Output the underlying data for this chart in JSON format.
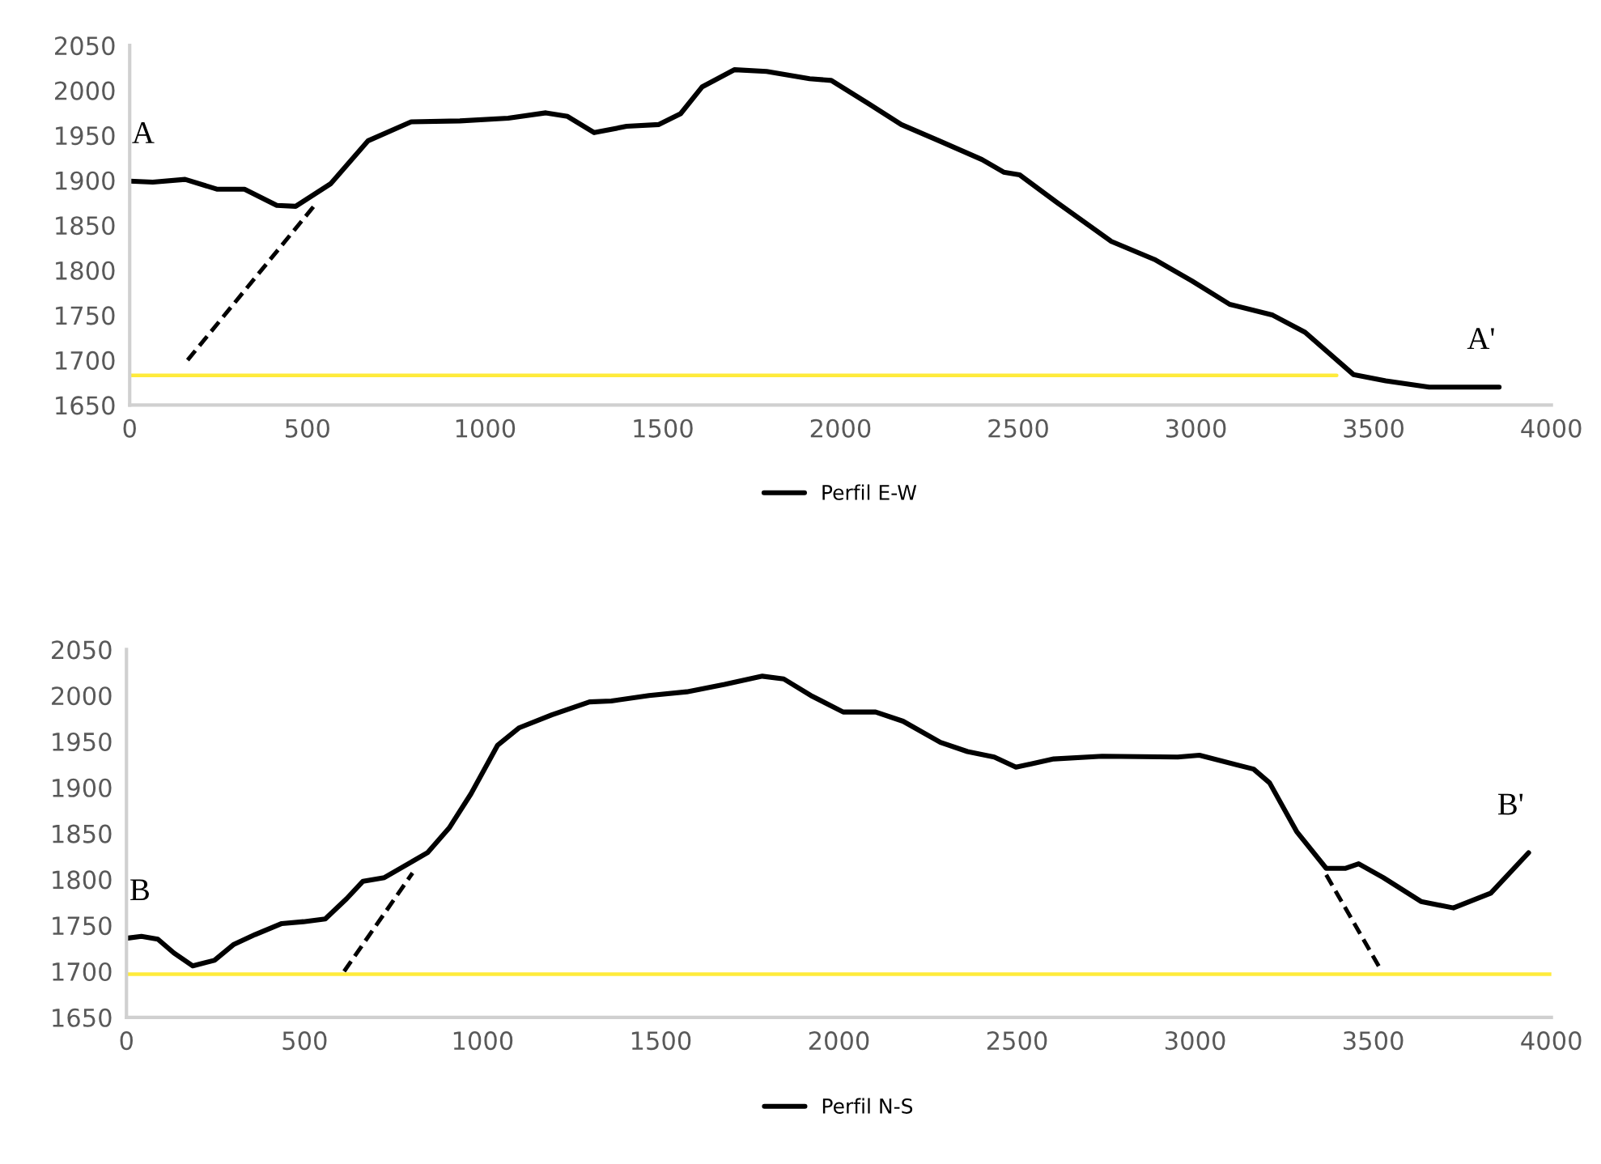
{
  "chart_data": [
    {
      "type": "line",
      "xlim": [
        0,
        4000
      ],
      "ylim": [
        1650,
        2050
      ],
      "xticks": [
        0,
        500,
        1000,
        1500,
        2000,
        2500,
        3000,
        3500,
        4000
      ],
      "yticks": [
        1650,
        1700,
        1750,
        1800,
        1850,
        1900,
        1950,
        2000,
        2050
      ],
      "legend": "bottom",
      "series": [
        {
          "name": "Perfil E-W",
          "color": "#000000",
          "line_style": "solid",
          "x": [
            0,
            65,
            156,
            247,
            323,
            414,
            467,
            565,
            671,
            792,
            929,
            1065,
            1171,
            1232,
            1307,
            1398,
            1489,
            1550,
            1611,
            1702,
            1792,
            1913,
            1974,
            2080,
            2171,
            2277,
            2398,
            2459,
            2504,
            2610,
            2762,
            2883,
            2989,
            3095,
            3216,
            3307,
            3443,
            3534,
            3656,
            3853
          ],
          "values": [
            1899,
            1898,
            1901,
            1890,
            1890,
            1872,
            1871,
            1896,
            1944,
            1965,
            1966,
            1969,
            1975,
            1971,
            1953,
            1960,
            1962,
            1974,
            2004,
            2023,
            2021,
            2013,
            2011,
            1985,
            1962,
            1944,
            1923,
            1909,
            1906,
            1875,
            1832,
            1812,
            1788,
            1762,
            1750,
            1731,
            1684,
            1677,
            1670,
            1670
          ]
        },
        {
          "color": "#000000",
          "line_style": "dashed",
          "x": [
            163,
            520
          ],
          "values": [
            1700,
            1872
          ]
        },
        {
          "color": "#ffeb3b",
          "line_style": "solid",
          "x": [
            0,
            3396
          ],
          "values": [
            1683,
            1683
          ]
        }
      ],
      "annotations": [
        "A",
        "A'"
      ]
    },
    {
      "type": "line",
      "xlim": [
        0,
        4000
      ],
      "ylim": [
        1650,
        2050
      ],
      "xticks": [
        0,
        500,
        1000,
        1500,
        2000,
        2500,
        3000,
        3500,
        4000
      ],
      "yticks": [
        1650,
        1700,
        1750,
        1800,
        1850,
        1900,
        1950,
        2000,
        2050
      ],
      "legend": "bottom",
      "series": [
        {
          "name": "Perfil N-S",
          "color": "#000000",
          "line_style": "solid",
          "x": [
            0,
            42,
            88,
            133,
            186,
            247,
            300,
            361,
            436,
            497,
            558,
            618,
            664,
            724,
            800,
            845,
            906,
            967,
            1042,
            1103,
            1194,
            1300,
            1361,
            1467,
            1573,
            1679,
            1785,
            1845,
            1921,
            2012,
            2103,
            2180,
            2285,
            2361,
            2436,
            2497,
            2603,
            2739,
            2951,
            3012,
            3164,
            3209,
            3285,
            3368,
            3421,
            3459,
            3528,
            3634,
            3725,
            3830,
            3936
          ],
          "values": [
            1736,
            1738,
            1735,
            1720,
            1706,
            1712,
            1729,
            1740,
            1752,
            1754,
            1757,
            1779,
            1798,
            1802,
            1819,
            1829,
            1856,
            1893,
            1946,
            1965,
            1979,
            1993,
            1994,
            2000,
            2004,
            2012,
            2021,
            2018,
            2000,
            1982,
            1982,
            1972,
            1949,
            1939,
            1933,
            1922,
            1931,
            1934,
            1933,
            1935,
            1920,
            1905,
            1852,
            1812,
            1812,
            1817,
            1802,
            1776,
            1769,
            1785,
            1829
          ]
        },
        {
          "color": "#000000",
          "line_style": "dashed",
          "x": [
            611,
            803
          ],
          "values": [
            1700,
            1807
          ]
        },
        {
          "color": "#000000",
          "line_style": "dashed",
          "x": [
            3368,
            3524
          ],
          "values": [
            1805,
            1700
          ]
        },
        {
          "color": "#ffeb3b",
          "line_style": "solid",
          "x": [
            0,
            4000
          ],
          "values": [
            1697,
            1697
          ]
        }
      ],
      "annotations": [
        "B",
        "B'"
      ]
    }
  ]
}
